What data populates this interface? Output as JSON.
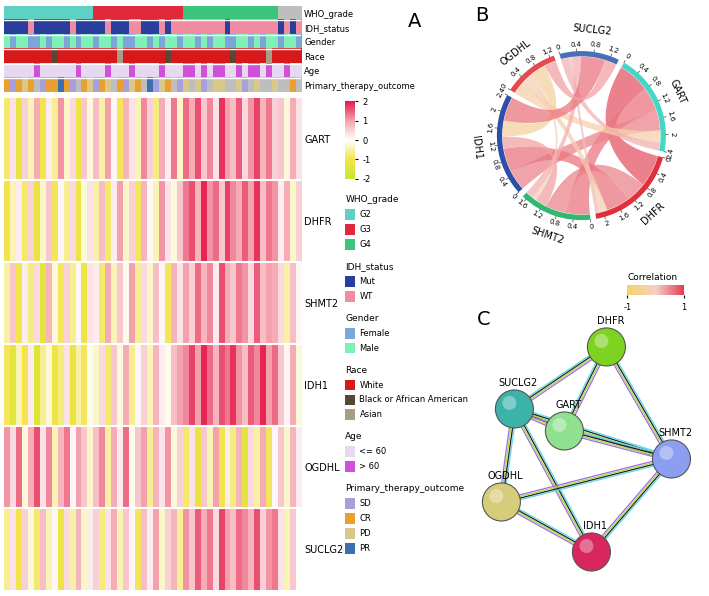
{
  "chart_data": [
    {
      "type": "heatmap",
      "label": "A",
      "rows": [
        "GART",
        "DHFR",
        "SHMT2",
        "IDH1",
        "OGDHL",
        "SUCLG2"
      ],
      "cells": [
        [
          -0.8,
          0.3,
          -1.2,
          0.5,
          -0.4,
          0.9,
          -1.0,
          0.2,
          -0.6,
          1.1,
          -0.3,
          0.4,
          -1.1,
          0.6,
          -0.2,
          0.7,
          -0.5,
          1.0,
          0.1,
          -0.9,
          0.8,
          0.3,
          -0.4,
          1.2,
          0.5,
          -0.7,
          0.9,
          0.2,
          1.3,
          -0.3,
          1.4,
          0.9,
          1.6,
          0.6,
          1.2,
          0.3,
          1.8,
          1.0,
          0.7,
          1.5,
          0.4,
          1.1,
          1.7,
          0.8,
          1.3,
          0.5,
          0.6,
          -0.2,
          0.9,
          0.3
        ],
        [
          -1.0,
          -0.4,
          0.2,
          -0.8,
          0.5,
          -1.2,
          -0.3,
          0.6,
          -0.9,
          0.1,
          -0.6,
          0.4,
          -1.1,
          -0.2,
          0.3,
          -0.5,
          0.7,
          -0.8,
          0.2,
          1.0,
          -0.3,
          0.5,
          -0.9,
          0.8,
          0.1,
          -0.4,
          1.1,
          0.3,
          -0.2,
          0.6,
          1.3,
          1.6,
          0.8,
          1.9,
          1.1,
          1.4,
          0.6,
          1.7,
          1.2,
          0.9,
          1.5,
          1.0,
          1.8,
          0.7,
          1.3,
          1.1,
          0.2,
          0.9,
          -0.3,
          0.5
        ],
        [
          -0.5,
          0.6,
          -1.0,
          0.2,
          -0.7,
          0.4,
          -1.3,
          0.8,
          -0.2,
          -0.9,
          0.5,
          -0.6,
          0.1,
          -1.1,
          0.3,
          0.2,
          -0.8,
          0.9,
          -0.4,
          0.6,
          -0.1,
          1.0,
          -0.6,
          0.4,
          -0.3,
          0.7,
          0.1,
          -0.9,
          0.8,
          0.3,
          1.0,
          0.5,
          1.4,
          0.8,
          1.2,
          0.2,
          1.6,
          0.9,
          0.6,
          1.3,
          1.1,
          0.4,
          1.5,
          0.7,
          1.0,
          0.9,
          0.4,
          -0.5,
          0.7,
          0.1
        ],
        [
          -0.9,
          -1.3,
          -0.4,
          -1.0,
          0.2,
          -1.5,
          -0.6,
          -0.2,
          -1.1,
          -0.7,
          0.3,
          -1.2,
          -0.5,
          -0.9,
          -0.1,
          -0.3,
          0.4,
          -0.8,
          0.6,
          -0.2,
          0.9,
          -0.6,
          0.1,
          0.5,
          -0.4,
          0.8,
          0.2,
          -0.1,
          0.7,
          1.0,
          1.2,
          1.7,
          1.0,
          1.9,
          1.4,
          0.8,
          1.6,
          1.3,
          1.8,
          1.1,
          0.7,
          1.5,
          1.2,
          1.9,
          1.0,
          1.4,
          0.6,
          0.1,
          0.9,
          -0.2
        ],
        [
          1.1,
          0.4,
          1.4,
          -0.2,
          0.9,
          1.6,
          0.3,
          1.2,
          -0.4,
          0.8,
          1.3,
          0.1,
          1.0,
          0.6,
          -0.3,
          0.7,
          1.2,
          -0.5,
          0.9,
          0.2,
          1.4,
          -0.1,
          0.6,
          1.0,
          -0.6,
          0.8,
          0.3,
          1.1,
          -0.2,
          0.5,
          -0.8,
          0.3,
          -1.2,
          0.6,
          -0.4,
          1.0,
          -1.0,
          0.2,
          -0.7,
          0.8,
          -1.3,
          0.4,
          -0.5,
          0.9,
          -0.9,
          0.1,
          0.6,
          -0.3,
          0.8,
          0.2
        ],
        [
          -0.6,
          0.3,
          -1.0,
          0.5,
          -0.2,
          -0.8,
          0.7,
          -0.4,
          0.1,
          -1.1,
          0.4,
          -0.5,
          0.8,
          -0.3,
          0.2,
          0.5,
          -0.7,
          0.3,
          0.9,
          -0.4,
          0.6,
          0.1,
          -0.9,
          0.7,
          0.2,
          1.0,
          -0.3,
          0.5,
          0.8,
          -0.6,
          1.1,
          0.6,
          1.5,
          0.9,
          1.3,
          0.4,
          1.7,
          1.0,
          0.7,
          1.4,
          1.2,
          0.8,
          1.6,
          0.5,
          1.1,
          1.3,
          0.3,
          -0.4,
          0.6,
          0.0
        ]
      ],
      "colorbar": {
        "range": [
          -2,
          2
        ],
        "ticks": [
          -2,
          -1,
          0,
          1,
          2
        ],
        "colors": [
          "#C8E62A",
          "#F2E44A",
          "#FFFFFF",
          "#F4A3AE",
          "#E5194A"
        ]
      },
      "tracks": [
        {
          "name": "WHO_grade",
          "levels": [
            "G2",
            "G3",
            "G4"
          ],
          "colors": [
            "#5ED1C2",
            "#E02A3B",
            "#3CC47C"
          ],
          "values": [
            "G2",
            "G2",
            "G2",
            "G2",
            "G2",
            "G2",
            "G2",
            "G2",
            "G2",
            "G2",
            "G2",
            "G2",
            "G2",
            "G2",
            "G2",
            "G3",
            "G3",
            "G3",
            "G3",
            "G3",
            "G3",
            "G3",
            "G3",
            "G3",
            "G3",
            "G3",
            "G3",
            "G3",
            "G3",
            "G3",
            "G4",
            "G4",
            "G4",
            "G4",
            "G4",
            "G4",
            "G4",
            "G4",
            "G4",
            "G4",
            "G4",
            "G4",
            "G4",
            "G4",
            "G4",
            "G4",
            null,
            null,
            null,
            null
          ]
        },
        {
          "name": "IDH_status",
          "levels": [
            "Mut",
            "WT"
          ],
          "colors": [
            "#2C3E9C",
            "#F08CA0"
          ],
          "values": [
            "Mut",
            "Mut",
            "Mut",
            "Mut",
            "WT",
            "Mut",
            "Mut",
            "Mut",
            "Mut",
            "Mut",
            "Mut",
            "WT",
            "Mut",
            "Mut",
            "Mut",
            "Mut",
            "Mut",
            "WT",
            "Mut",
            "Mut",
            "Mut",
            "WT",
            "WT",
            "Mut",
            "Mut",
            "Mut",
            "WT",
            "Mut",
            "WT",
            "WT",
            "WT",
            "WT",
            "WT",
            "WT",
            "WT",
            "WT",
            "WT",
            "Mut",
            "WT",
            "WT",
            "WT",
            "WT",
            "WT",
            "WT",
            "WT",
            "WT",
            "Mut",
            "WT",
            "Mut",
            "WT"
          ]
        },
        {
          "name": "Gender",
          "levels": [
            "Female",
            "Male"
          ],
          "colors": [
            "#7BA7D8",
            "#7EF0B8"
          ],
          "values": [
            "Male",
            "Female",
            "Male",
            "Male",
            "Female",
            "Female",
            "Male",
            "Female",
            "Male",
            "Male",
            "Female",
            "Male",
            "Female",
            "Male",
            "Male",
            "Female",
            "Male",
            "Male",
            "Female",
            "Male",
            "Female",
            "Female",
            "Male",
            "Male",
            "Female",
            "Male",
            "Female",
            "Male",
            "Male",
            "Female",
            "Male",
            "Male",
            "Female",
            "Male",
            "Female",
            "Male",
            "Male",
            "Female",
            "Female",
            "Male",
            "Male",
            "Female",
            "Male",
            "Female",
            "Male",
            "Male",
            "Female",
            "Male",
            "Male",
            "Female"
          ]
        },
        {
          "name": "Race",
          "levels": [
            "White",
            "Black or African American",
            "Asian"
          ],
          "colors": [
            "#D7191C",
            "#5A4632",
            "#A89E86"
          ],
          "values": [
            "White",
            "White",
            "White",
            "White",
            "White",
            "White",
            "White",
            "White",
            "Black or African American",
            "White",
            "White",
            "White",
            "White",
            "White",
            "White",
            "White",
            "White",
            "White",
            "White",
            "Asian",
            "White",
            "White",
            "White",
            "White",
            "White",
            "White",
            "White",
            "Black or African American",
            "White",
            "White",
            "White",
            "White",
            "White",
            "White",
            "White",
            "White",
            "White",
            "White",
            "Black or African American",
            "White",
            "White",
            "White",
            "White",
            "White",
            "Asian",
            "White",
            "White",
            "White",
            "White",
            "White"
          ]
        },
        {
          "name": "Age",
          "levels": [
            "<= 60",
            "> 60"
          ],
          "colors": [
            "#E6D8F0",
            "#D24FD8"
          ],
          "values": [
            "<= 60",
            "<= 60",
            "<= 60",
            "<= 60",
            "<= 60",
            "> 60",
            "<= 60",
            "<= 60",
            "<= 60",
            "<= 60",
            "<= 60",
            "<= 60",
            "> 60",
            "<= 60",
            "<= 60",
            "<= 60",
            "<= 60",
            "> 60",
            "<= 60",
            "<= 60",
            "<= 60",
            "> 60",
            "<= 60",
            "<= 60",
            "<= 60",
            "<= 60",
            "> 60",
            "<= 60",
            "<= 60",
            "<= 60",
            "> 60",
            "> 60",
            "<= 60",
            "> 60",
            "<= 60",
            "> 60",
            "> 60",
            "<= 60",
            "<= 60",
            "> 60",
            "<= 60",
            "> 60",
            "> 60",
            "<= 60",
            "> 60",
            "<= 60",
            "<= 60",
            "> 60",
            "<= 60",
            "<= 60"
          ]
        },
        {
          "name": "Primary_therapy_outcome",
          "levels": [
            "SD",
            "CR",
            "PD",
            "PR"
          ],
          "colors": [
            "#A8A0DC",
            "#E8A030",
            "#D8C88A",
            "#3C6FB0"
          ],
          "values": [
            "CR",
            "SD",
            "CR",
            "PD",
            "CR",
            null,
            "SD",
            "CR",
            "CR",
            "PR",
            "CR",
            "SD",
            null,
            "CR",
            "PD",
            "SD",
            "CR",
            "PD",
            null,
            "CR",
            "SD",
            "PD",
            "CR",
            null,
            "PR",
            "SD",
            "PD",
            "CR",
            null,
            "SD",
            "PD",
            null,
            "PD",
            "SD",
            null,
            "PD",
            "PD",
            null,
            null,
            "PD",
            "SD",
            null,
            "PD",
            null,
            null,
            "PD",
            null,
            null,
            "CR",
            null
          ]
        }
      ]
    },
    {
      "type": "chord",
      "label": "B",
      "nodes": [
        {
          "name": "SUCLG2",
          "color": "#4A6FB5",
          "ticks": [
            0,
            0.4,
            0.8,
            1.2
          ]
        },
        {
          "name": "GART",
          "color": "#45D6C6",
          "ticks": [
            0,
            0.4,
            0.8,
            1.2,
            1.6,
            2,
            2.4
          ]
        },
        {
          "name": "DHFR",
          "color": "#E0303B",
          "ticks": [
            0,
            0.4,
            0.8,
            1.2,
            1.6,
            2
          ]
        },
        {
          "name": "SHMT2",
          "color": "#2EB872",
          "ticks": [
            0,
            0.4,
            0.8,
            1.2,
            1.6
          ]
        },
        {
          "name": "IDH1",
          "color": "#2E4FA8",
          "ticks": [
            0,
            0.4,
            0.8,
            1.2,
            1.6,
            2,
            2.4
          ]
        },
        {
          "name": "OGDHL",
          "color": "#E8484F",
          "ticks": [
            0,
            0.4,
            0.8,
            1.2
          ]
        }
      ],
      "links": [
        {
          "source": "GART",
          "target": "DHFR",
          "value": 0.8
        },
        {
          "source": "GART",
          "target": "SHMT2",
          "value": 0.6
        },
        {
          "source": "GART",
          "target": "IDH1",
          "value": 0.5
        },
        {
          "source": "GART",
          "target": "OGDHL",
          "value": -0.3
        },
        {
          "source": "GART",
          "target": "SUCLG2",
          "value": 0.2
        },
        {
          "source": "DHFR",
          "target": "SHMT2",
          "value": 0.5
        },
        {
          "source": "DHFR",
          "target": "IDH1",
          "value": 0.6
        },
        {
          "source": "DHFR",
          "target": "OGDHL",
          "value": -0.2
        },
        {
          "source": "DHFR",
          "target": "SUCLG2",
          "value": 0.1
        },
        {
          "source": "SHMT2",
          "target": "IDH1",
          "value": 0.3
        },
        {
          "source": "SHMT2",
          "target": "OGDHL",
          "value": -0.1
        },
        {
          "source": "SHMT2",
          "target": "SUCLG2",
          "value": 0.2
        },
        {
          "source": "IDH1",
          "target": "OGDHL",
          "value": -0.4
        },
        {
          "source": "IDH1",
          "target": "SUCLG2",
          "value": 0.6
        },
        {
          "source": "OGDHL",
          "target": "SUCLG2",
          "value": 0.3
        }
      ],
      "colorbar": {
        "title": "Correlation",
        "range": [
          -1,
          1
        ],
        "ticks": [
          -1,
          1
        ],
        "colors": [
          "#F3D468",
          "#F6CFC8",
          "#E23A50"
        ]
      }
    },
    {
      "type": "network",
      "label": "C",
      "nodes": [
        {
          "name": "DHFR",
          "color": "#7ED321"
        },
        {
          "name": "SUCLG2",
          "color": "#3BB3A8"
        },
        {
          "name": "GART",
          "color": "#8FE08F"
        },
        {
          "name": "SHMT2",
          "color": "#8C9EF0"
        },
        {
          "name": "OGDHL",
          "color": "#D6CC7A"
        },
        {
          "name": "IDH1",
          "color": "#D8265E"
        }
      ],
      "edges": [
        [
          "SUCLG2",
          "GART"
        ],
        [
          "SUCLG2",
          "DHFR"
        ],
        [
          "SUCLG2",
          "SHMT2"
        ],
        [
          "SUCLG2",
          "OGDHL"
        ],
        [
          "SUCLG2",
          "IDH1"
        ],
        [
          "GART",
          "DHFR"
        ],
        [
          "GART",
          "SHMT2"
        ],
        [
          "DHFR",
          "SHMT2"
        ],
        [
          "SHMT2",
          "IDH1"
        ],
        [
          "SHMT2",
          "OGDHL"
        ],
        [
          "OGDHL",
          "IDH1"
        ]
      ]
    }
  ]
}
